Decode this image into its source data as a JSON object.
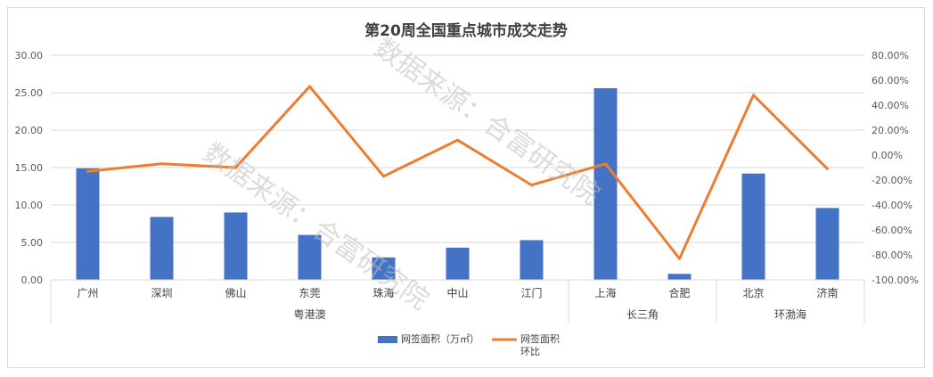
{
  "chart_data": {
    "type": "bar",
    "title": "第20周全国重点城市成交走势",
    "categories": [
      "广州",
      "深圳",
      "佛山",
      "东莞",
      "珠海",
      "中山",
      "江门",
      "上海",
      "合肥",
      "北京",
      "济南"
    ],
    "groups": [
      {
        "label": "粤港澳",
        "count": 7
      },
      {
        "label": "长三角",
        "count": 2
      },
      {
        "label": "环渤海",
        "count": 2
      }
    ],
    "series": [
      {
        "name": "网签面积（万㎡）",
        "type": "bar",
        "axis": "left",
        "color": "#4472c4",
        "values": [
          14.9,
          8.4,
          9.0,
          6.0,
          3.0,
          4.3,
          5.3,
          25.6,
          0.8,
          14.2,
          9.6
        ]
      },
      {
        "name": "网签面积环比",
        "type": "line",
        "axis": "right",
        "color": "#ed7d31",
        "values": [
          -13.0,
          -7.0,
          -10.0,
          55.0,
          -17.0,
          12.0,
          -24.0,
          -7.0,
          -83.0,
          48.0,
          -11.0
        ]
      }
    ],
    "ylim_left": [
      0,
      30
    ],
    "ylim_right": [
      -100,
      80
    ],
    "yticks_left": [
      "0.00",
      "5.00",
      "10.00",
      "15.00",
      "20.00",
      "25.00",
      "30.00"
    ],
    "yticks_right": [
      "-100.00%",
      "-80.00%",
      "-60.00%",
      "-40.00%",
      "-20.00%",
      "0.00%",
      "20.00%",
      "40.00%",
      "60.00%",
      "80.00%"
    ],
    "grid": true,
    "legend_position": "bottom",
    "legend": [
      {
        "label": "网签面积（万㎡）"
      },
      {
        "label_lines": [
          "网签面积",
          "环比"
        ]
      }
    ],
    "watermark": "数据来源：合富研究院"
  }
}
